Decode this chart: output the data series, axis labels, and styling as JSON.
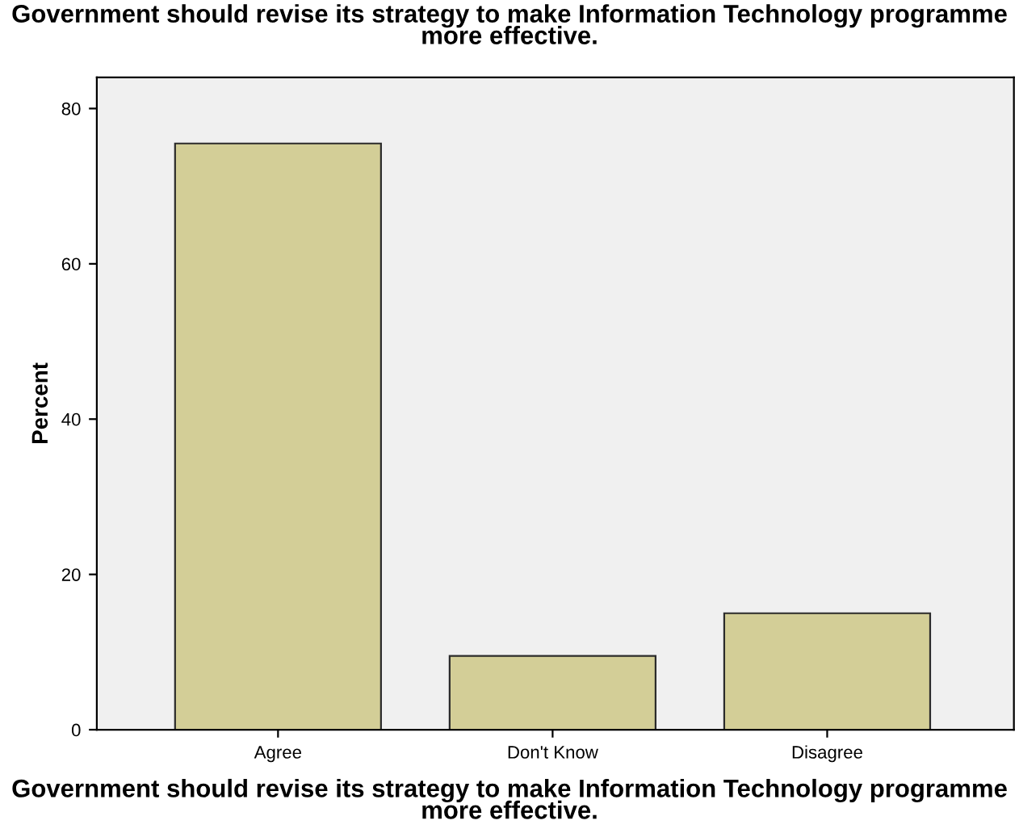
{
  "chart_data": {
    "type": "bar",
    "title": "Government should revise its strategy to make Information Technology programme more effective.",
    "xlabel": "Government should revise its strategy to make Information Technology programme more effective.",
    "ylabel": "Percent",
    "categories": [
      "Agree",
      "Don't Know",
      "Disagree"
    ],
    "values": [
      75.5,
      9.5,
      15
    ],
    "color": "#d3ce97",
    "ylim": [
      0,
      84
    ],
    "yticks": [
      0,
      20,
      40,
      60,
      80
    ],
    "grid": false,
    "legend": false
  }
}
